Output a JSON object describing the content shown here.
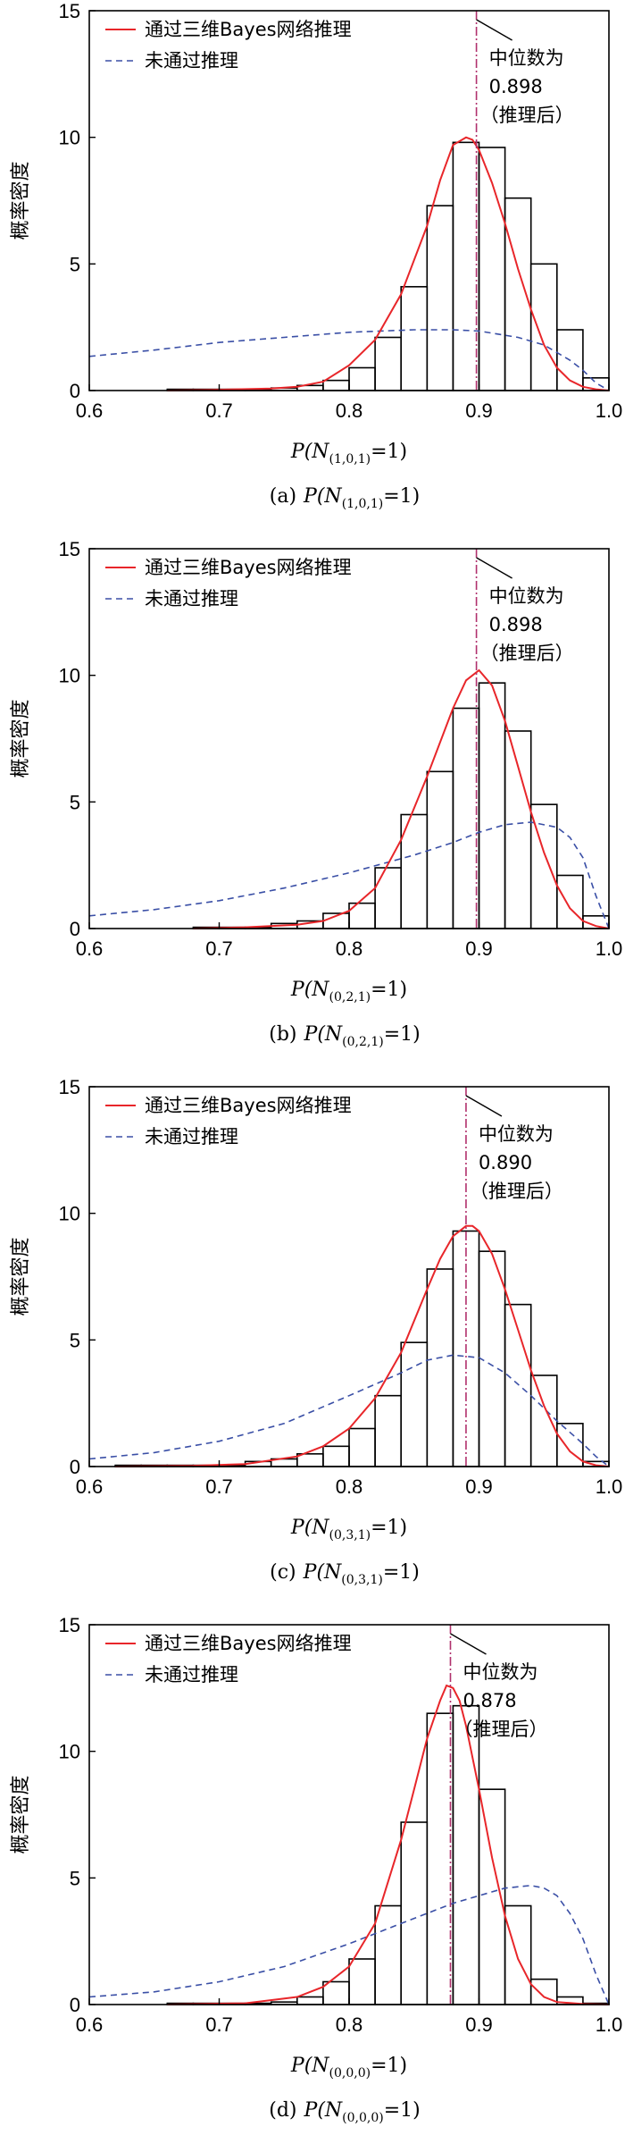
{
  "chart_data": [
    {
      "type": "bar",
      "panel_label": "(a)",
      "xlabel": "P(N(1,0,1)=1)",
      "xlabel_parts": {
        "prefix": "P(N",
        "sub": "(1,0,1)",
        "suffix": "=1)"
      },
      "caption": "(a) P(N(1,0,1)=1)",
      "ylabel": "概率密度",
      "xlim": [
        0.6,
        1.0
      ],
      "ylim": [
        0,
        15
      ],
      "xticks": [
        "0.6",
        "0.7",
        "0.8",
        "0.9",
        "1.0"
      ],
      "yticks": [
        "0",
        "5",
        "10",
        "15"
      ],
      "legend": {
        "placement": "top-left",
        "posterior": "通过三维Bayes网络推理",
        "prior": "未通过推理"
      },
      "median_label": "中位数为",
      "median_value": "0.898",
      "median_note": "（推理后）",
      "median": 0.898,
      "bin_width": 0.02,
      "bins": [
        {
          "x0": 0.66,
          "h": 0.05
        },
        {
          "x0": 0.68,
          "h": 0.05
        },
        {
          "x0": 0.7,
          "h": 0.05
        },
        {
          "x0": 0.72,
          "h": 0.05
        },
        {
          "x0": 0.74,
          "h": 0.1
        },
        {
          "x0": 0.76,
          "h": 0.2
        },
        {
          "x0": 0.78,
          "h": 0.4
        },
        {
          "x0": 0.8,
          "h": 0.9
        },
        {
          "x0": 0.82,
          "h": 2.1
        },
        {
          "x0": 0.84,
          "h": 4.1
        },
        {
          "x0": 0.86,
          "h": 7.3
        },
        {
          "x0": 0.88,
          "h": 9.8
        },
        {
          "x0": 0.9,
          "h": 9.6
        },
        {
          "x0": 0.92,
          "h": 7.6
        },
        {
          "x0": 0.94,
          "h": 5.0
        },
        {
          "x0": 0.96,
          "h": 2.4
        },
        {
          "x0": 0.98,
          "h": 0.5
        }
      ],
      "posterior_curve": {
        "x": [
          0.66,
          0.7,
          0.74,
          0.76,
          0.78,
          0.8,
          0.82,
          0.84,
          0.86,
          0.87,
          0.88,
          0.89,
          0.895,
          0.9,
          0.91,
          0.92,
          0.93,
          0.94,
          0.95,
          0.96,
          0.97,
          0.98,
          0.99,
          1.0
        ],
        "y": [
          0,
          0.03,
          0.08,
          0.15,
          0.35,
          1.0,
          2.0,
          3.8,
          6.5,
          8.3,
          9.7,
          10.0,
          9.9,
          9.5,
          8.2,
          6.6,
          4.8,
          3.2,
          1.8,
          0.9,
          0.4,
          0.15,
          0.05,
          0
        ]
      },
      "prior_curve": {
        "x": [
          0.6,
          0.65,
          0.7,
          0.75,
          0.8,
          0.85,
          0.88,
          0.9,
          0.93,
          0.95,
          0.97,
          0.98,
          0.99,
          1.0
        ],
        "y": [
          1.35,
          1.6,
          1.9,
          2.1,
          2.3,
          2.4,
          2.4,
          2.35,
          2.1,
          1.8,
          1.2,
          0.8,
          0.3,
          0
        ]
      }
    },
    {
      "type": "bar",
      "panel_label": "(b)",
      "xlabel": "P(N(0,2,1)=1)",
      "xlabel_parts": {
        "prefix": "P(N",
        "sub": "(0,2,1)",
        "suffix": "=1)"
      },
      "caption": "(b) P(N(0,2,1)=1)",
      "ylabel": "概率密度",
      "xlim": [
        0.6,
        1.0
      ],
      "ylim": [
        0,
        15
      ],
      "xticks": [
        "0.6",
        "0.7",
        "0.8",
        "0.9",
        "1.0"
      ],
      "yticks": [
        "0",
        "5",
        "10",
        "15"
      ],
      "legend": {
        "placement": "top-left",
        "posterior": "通过三维Bayes网络推理",
        "prior": "未通过推理"
      },
      "median_label": "中位数为",
      "median_value": "0.898",
      "median_note": "（推理后）",
      "median": 0.898,
      "bin_width": 0.02,
      "bins": [
        {
          "x0": 0.68,
          "h": 0.05
        },
        {
          "x0": 0.7,
          "h": 0.05
        },
        {
          "x0": 0.72,
          "h": 0.05
        },
        {
          "x0": 0.74,
          "h": 0.2
        },
        {
          "x0": 0.76,
          "h": 0.3
        },
        {
          "x0": 0.78,
          "h": 0.6
        },
        {
          "x0": 0.8,
          "h": 1.0
        },
        {
          "x0": 0.82,
          "h": 2.4
        },
        {
          "x0": 0.84,
          "h": 4.5
        },
        {
          "x0": 0.86,
          "h": 6.2
        },
        {
          "x0": 0.88,
          "h": 8.7
        },
        {
          "x0": 0.9,
          "h": 9.7
        },
        {
          "x0": 0.92,
          "h": 7.8
        },
        {
          "x0": 0.94,
          "h": 4.9
        },
        {
          "x0": 0.96,
          "h": 2.1
        },
        {
          "x0": 0.98,
          "h": 0.5
        }
      ],
      "posterior_curve": {
        "x": [
          0.68,
          0.72,
          0.76,
          0.78,
          0.8,
          0.82,
          0.84,
          0.86,
          0.88,
          0.89,
          0.9,
          0.91,
          0.92,
          0.93,
          0.94,
          0.95,
          0.96,
          0.97,
          0.98,
          0.99,
          1.0
        ],
        "y": [
          0,
          0.05,
          0.15,
          0.3,
          0.7,
          1.6,
          3.5,
          6.0,
          8.7,
          9.8,
          10.2,
          9.6,
          8.2,
          6.4,
          4.6,
          3.0,
          1.7,
          0.8,
          0.3,
          0.1,
          0
        ]
      },
      "prior_curve": {
        "x": [
          0.6,
          0.65,
          0.7,
          0.75,
          0.8,
          0.85,
          0.88,
          0.9,
          0.92,
          0.94,
          0.96,
          0.97,
          0.98,
          0.99,
          1.0
        ],
        "y": [
          0.5,
          0.75,
          1.1,
          1.6,
          2.2,
          2.9,
          3.4,
          3.8,
          4.1,
          4.2,
          4.0,
          3.6,
          2.8,
          1.3,
          0
        ]
      }
    },
    {
      "type": "bar",
      "panel_label": "(c)",
      "xlabel": "P(N(0,3,1)=1)",
      "xlabel_parts": {
        "prefix": "P(N",
        "sub": "(0,3,1)",
        "suffix": "=1)"
      },
      "caption": "(c) P(N(0,3,1)=1)",
      "ylabel": "概率密度",
      "xlim": [
        0.6,
        1.0
      ],
      "ylim": [
        0,
        15
      ],
      "xticks": [
        "0.6",
        "0.7",
        "0.8",
        "0.9",
        "1.0"
      ],
      "yticks": [
        "0",
        "5",
        "10",
        "15"
      ],
      "legend": {
        "placement": "top-left",
        "posterior": "通过三维Bayes网络推理",
        "prior": "未通过推理"
      },
      "median_label": "中位数为",
      "median_value": "0.890",
      "median_note": "（推理后）",
      "median": 0.89,
      "bin_width": 0.02,
      "bins": [
        {
          "x0": 0.62,
          "h": 0.05
        },
        {
          "x0": 0.64,
          "h": 0.05
        },
        {
          "x0": 0.66,
          "h": 0.05
        },
        {
          "x0": 0.68,
          "h": 0.05
        },
        {
          "x0": 0.7,
          "h": 0.05
        },
        {
          "x0": 0.72,
          "h": 0.2
        },
        {
          "x0": 0.74,
          "h": 0.3
        },
        {
          "x0": 0.76,
          "h": 0.5
        },
        {
          "x0": 0.78,
          "h": 0.8
        },
        {
          "x0": 0.8,
          "h": 1.5
        },
        {
          "x0": 0.82,
          "h": 2.8
        },
        {
          "x0": 0.84,
          "h": 4.9
        },
        {
          "x0": 0.86,
          "h": 7.8
        },
        {
          "x0": 0.88,
          "h": 9.3
        },
        {
          "x0": 0.9,
          "h": 8.5
        },
        {
          "x0": 0.92,
          "h": 6.4
        },
        {
          "x0": 0.94,
          "h": 3.6
        },
        {
          "x0": 0.96,
          "h": 1.7
        },
        {
          "x0": 0.98,
          "h": 0.2
        }
      ],
      "posterior_curve": {
        "x": [
          0.62,
          0.68,
          0.72,
          0.76,
          0.78,
          0.8,
          0.82,
          0.84,
          0.86,
          0.87,
          0.88,
          0.89,
          0.895,
          0.9,
          0.91,
          0.92,
          0.93,
          0.94,
          0.95,
          0.96,
          0.97,
          0.98,
          0.99,
          1.0
        ],
        "y": [
          0,
          0.03,
          0.1,
          0.4,
          0.8,
          1.5,
          2.7,
          4.5,
          7.0,
          8.2,
          9.1,
          9.5,
          9.5,
          9.3,
          8.4,
          7.0,
          5.4,
          3.8,
          2.4,
          1.3,
          0.6,
          0.2,
          0.05,
          0
        ]
      },
      "prior_curve": {
        "x": [
          0.6,
          0.65,
          0.7,
          0.75,
          0.8,
          0.84,
          0.86,
          0.88,
          0.9,
          0.92,
          0.94,
          0.96,
          0.98,
          0.99,
          1.0
        ],
        "y": [
          0.3,
          0.55,
          1.0,
          1.7,
          2.8,
          3.7,
          4.2,
          4.4,
          4.3,
          3.7,
          2.8,
          1.8,
          0.9,
          0.4,
          0
        ]
      }
    },
    {
      "type": "bar",
      "panel_label": "(d)",
      "xlabel": "P(N(0,0,0)=1)",
      "xlabel_parts": {
        "prefix": "P(N",
        "sub": "(0,0,0)",
        "suffix": "=1)"
      },
      "caption": "(d) P(N(0,0,0)=1)",
      "ylabel": "概率密度",
      "xlim": [
        0.6,
        1.0
      ],
      "ylim": [
        0,
        15
      ],
      "xticks": [
        "0.6",
        "0.7",
        "0.8",
        "0.9",
        "1.0"
      ],
      "yticks": [
        "0",
        "5",
        "10",
        "15"
      ],
      "legend": {
        "placement": "top-left",
        "posterior": "通过三维Bayes网络推理",
        "prior": "未通过推理"
      },
      "median_label": "中位数为",
      "median_value": "0.878",
      "median_note": "（推理后）",
      "median": 0.878,
      "bin_width": 0.02,
      "bins": [
        {
          "x0": 0.66,
          "h": 0.05
        },
        {
          "x0": 0.68,
          "h": 0.05
        },
        {
          "x0": 0.7,
          "h": 0.05
        },
        {
          "x0": 0.72,
          "h": 0.05
        },
        {
          "x0": 0.74,
          "h": 0.1
        },
        {
          "x0": 0.76,
          "h": 0.3
        },
        {
          "x0": 0.78,
          "h": 0.9
        },
        {
          "x0": 0.8,
          "h": 1.8
        },
        {
          "x0": 0.82,
          "h": 3.9
        },
        {
          "x0": 0.84,
          "h": 7.2
        },
        {
          "x0": 0.86,
          "h": 11.5
        },
        {
          "x0": 0.88,
          "h": 11.8
        },
        {
          "x0": 0.9,
          "h": 8.5
        },
        {
          "x0": 0.92,
          "h": 3.9
        },
        {
          "x0": 0.94,
          "h": 1.0
        },
        {
          "x0": 0.96,
          "h": 0.3
        },
        {
          "x0": 0.98,
          "h": 0.05
        }
      ],
      "posterior_curve": {
        "x": [
          0.66,
          0.72,
          0.76,
          0.78,
          0.8,
          0.82,
          0.84,
          0.85,
          0.86,
          0.87,
          0.875,
          0.88,
          0.885,
          0.89,
          0.9,
          0.91,
          0.92,
          0.93,
          0.94,
          0.95,
          0.96,
          0.98,
          1.0
        ],
        "y": [
          0,
          0.05,
          0.3,
          0.7,
          1.5,
          3.2,
          6.5,
          8.5,
          10.5,
          12.0,
          12.6,
          12.5,
          12.0,
          11.0,
          8.5,
          5.8,
          3.5,
          1.8,
          0.8,
          0.3,
          0.1,
          0.02,
          0
        ]
      },
      "prior_curve": {
        "x": [
          0.6,
          0.65,
          0.7,
          0.75,
          0.8,
          0.84,
          0.86,
          0.88,
          0.9,
          0.92,
          0.94,
          0.95,
          0.96,
          0.97,
          0.98,
          0.99,
          1.0
        ],
        "y": [
          0.3,
          0.5,
          0.9,
          1.5,
          2.4,
          3.2,
          3.6,
          4.0,
          4.3,
          4.6,
          4.7,
          4.6,
          4.3,
          3.6,
          2.6,
          1.2,
          0
        ]
      }
    }
  ],
  "colors": {
    "posterior": "#e8262a",
    "prior": "#3a4fa6",
    "median": "#b0306c",
    "bar_edge": "#000000"
  }
}
